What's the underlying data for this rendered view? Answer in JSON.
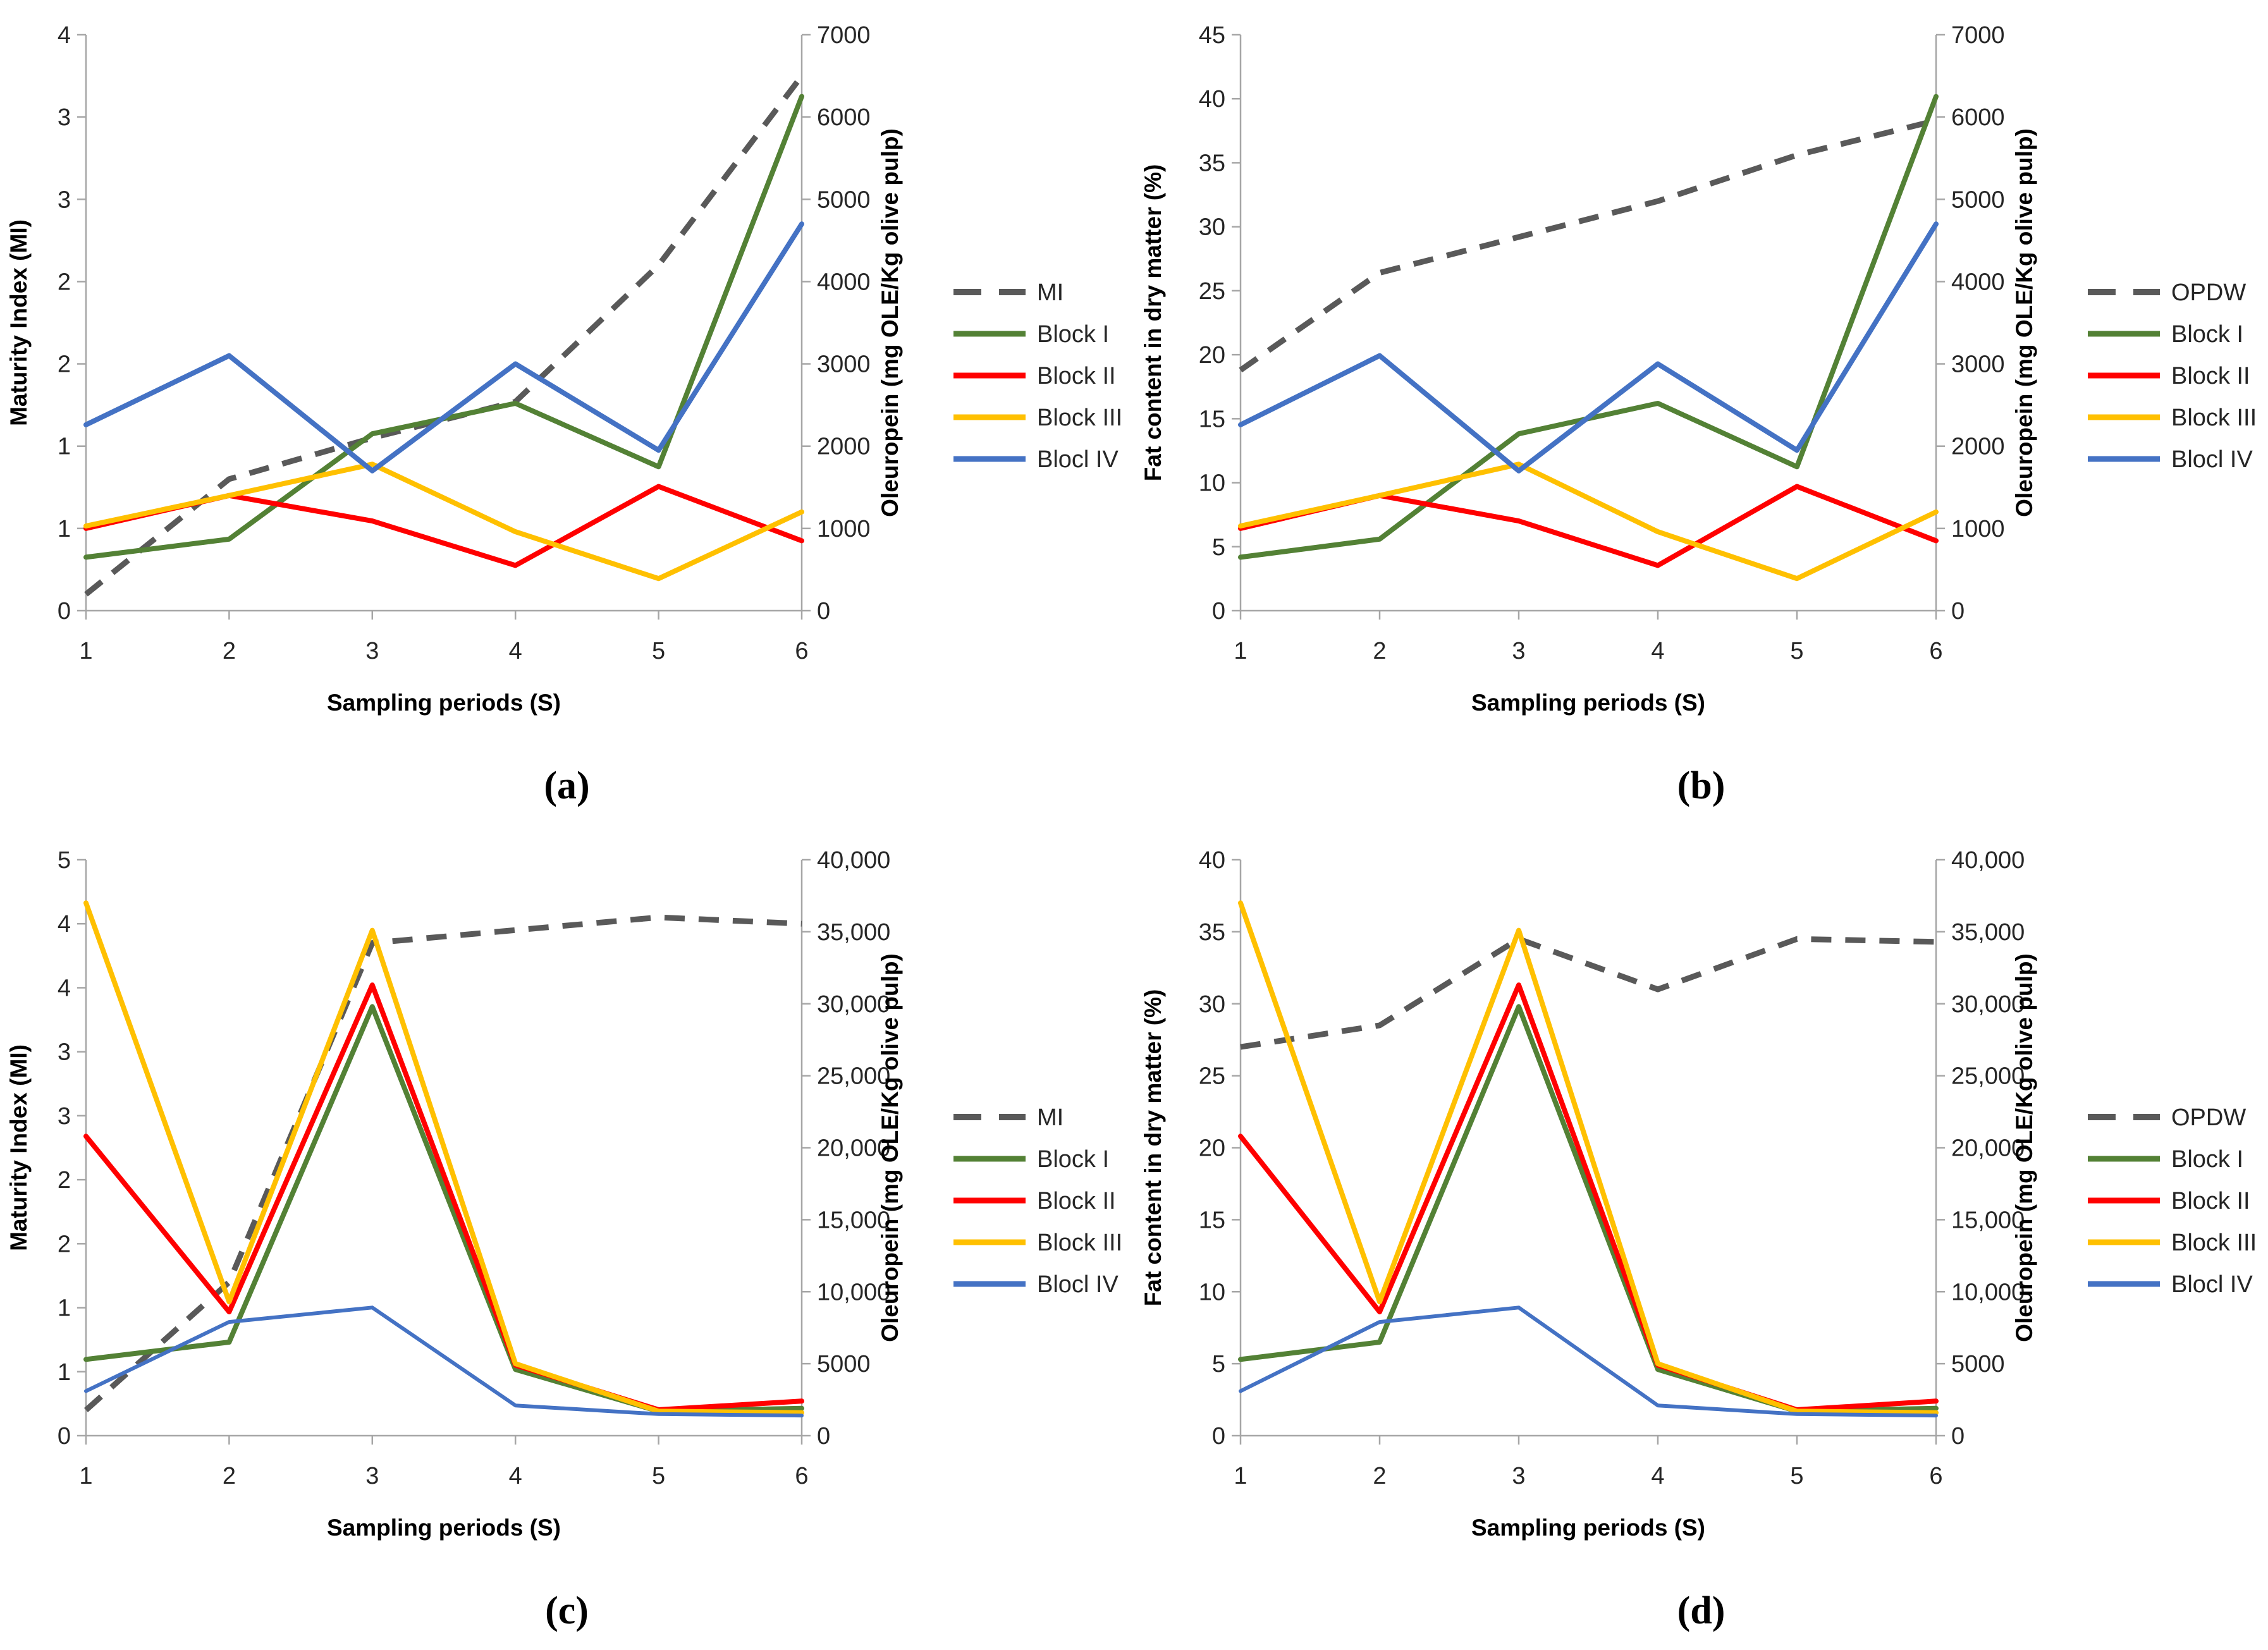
{
  "figure": {
    "background": "#ffffff",
    "axis_line_color": "#a6a6a6",
    "tick_label_color": "#262626",
    "captions": {
      "a": "(a)",
      "b": "(b)",
      "c": "(c)",
      "d": "(d)"
    }
  },
  "chart_data": [
    {
      "id": "a",
      "type": "line",
      "caption": "(a)",
      "x_axis": {
        "label": "Sampling periods (S)",
        "categories": [
          "1",
          "2",
          "3",
          "4",
          "5",
          "6"
        ]
      },
      "left_axis": {
        "label": "Maturity Index (MI)",
        "min": 0,
        "max": 3.5,
        "tick_labels": [
          "0",
          "1",
          "1",
          "2",
          "2",
          "3",
          "3",
          "4"
        ]
      },
      "right_axis": {
        "label": "Oleuropein (mg OLE/Kg olive pulp)",
        "min": 0,
        "max": 7000,
        "tick_labels": [
          "0",
          "1000",
          "2000",
          "3000",
          "4000",
          "5000",
          "6000",
          "7000"
        ]
      },
      "legend_position": "right",
      "grid": false,
      "series": [
        {
          "name": "MI",
          "axis": "left",
          "style": "dashed",
          "color": "#595959",
          "width": 9,
          "values": [
            0.1,
            0.8,
            1.05,
            1.27,
            2.1,
            3.25
          ]
        },
        {
          "name": "Block I",
          "axis": "right",
          "style": "solid",
          "color": "#538135",
          "width": 8,
          "values": [
            650,
            870,
            2150,
            2520,
            1750,
            6250
          ]
        },
        {
          "name": "Block II",
          "axis": "right",
          "style": "solid",
          "color": "#ff0000",
          "width": 8,
          "values": [
            1000,
            1400,
            1090,
            550,
            1510,
            850
          ]
        },
        {
          "name": "Block III",
          "axis": "right",
          "style": "solid",
          "color": "#ffc000",
          "width": 8,
          "values": [
            1030,
            1400,
            1780,
            960,
            390,
            1200
          ]
        },
        {
          "name": "Blocl IV",
          "axis": "right",
          "style": "solid",
          "color": "#4472c4",
          "width": 8,
          "values": [
            2260,
            3100,
            1700,
            3000,
            1950,
            4700
          ]
        }
      ]
    },
    {
      "id": "b",
      "type": "line",
      "caption": "(b)",
      "x_axis": {
        "label": "Sampling periods (S)",
        "categories": [
          "1",
          "2",
          "3",
          "4",
          "5",
          "6"
        ]
      },
      "left_axis": {
        "label": "Fat content in dry matter (%)",
        "min": 0,
        "max": 45,
        "tick_labels": [
          "0",
          "5",
          "10",
          "15",
          "20",
          "25",
          "30",
          "35",
          "40",
          "45"
        ]
      },
      "right_axis": {
        "label": "Oleuropein (mg OLE/Kg olive pulp)",
        "min": 0,
        "max": 7000,
        "tick_labels": [
          "0",
          "1000",
          "2000",
          "3000",
          "4000",
          "5000",
          "6000",
          "7000"
        ]
      },
      "legend_position": "right",
      "grid": false,
      "series": [
        {
          "name": "OPDW",
          "axis": "left",
          "style": "dashed",
          "color": "#595959",
          "width": 9,
          "values": [
            18.8,
            26.4,
            29.2,
            32.0,
            35.6,
            38.3
          ]
        },
        {
          "name": "Block I",
          "axis": "right",
          "style": "solid",
          "color": "#538135",
          "width": 8,
          "values": [
            650,
            870,
            2150,
            2520,
            1750,
            6250
          ]
        },
        {
          "name": "Block II",
          "axis": "right",
          "style": "solid",
          "color": "#ff0000",
          "width": 8,
          "values": [
            1000,
            1400,
            1090,
            550,
            1510,
            850
          ]
        },
        {
          "name": "Block III",
          "axis": "right",
          "style": "solid",
          "color": "#ffc000",
          "width": 8,
          "values": [
            1030,
            1400,
            1780,
            960,
            390,
            1200
          ]
        },
        {
          "name": "Blocl IV",
          "axis": "right",
          "style": "solid",
          "color": "#4472c4",
          "width": 8,
          "values": [
            2260,
            3100,
            1700,
            3000,
            1950,
            4700
          ]
        }
      ]
    },
    {
      "id": "c",
      "type": "line",
      "caption": "(c)",
      "x_axis": {
        "label": "Sampling periods (S)",
        "categories": [
          "1",
          "2",
          "3",
          "4",
          "5",
          "6"
        ]
      },
      "left_axis": {
        "label": "Maturity Index (MI)",
        "min": 0,
        "max": 4.5,
        "tick_labels": [
          "0",
          "1",
          "1",
          "2",
          "2",
          "3",
          "3",
          "4",
          "4",
          "5"
        ]
      },
      "right_axis": {
        "label": "Oleuropein (mg OLE/Kg olive pulp)",
        "min": 0,
        "max": 40000,
        "tick_labels": [
          "0",
          "5000",
          "10,000",
          "15,000",
          "20,000",
          "25,000",
          "30,000",
          "35,000",
          "40,000"
        ]
      },
      "legend_position": "right",
      "grid": false,
      "series": [
        {
          "name": "MI",
          "axis": "left",
          "style": "dashed",
          "color": "#595959",
          "width": 9,
          "values": [
            0.2,
            1.2,
            3.85,
            3.95,
            4.05,
            4.0
          ]
        },
        {
          "name": "Block I",
          "axis": "right",
          "style": "solid",
          "color": "#538135",
          "width": 8,
          "values": [
            5300,
            6500,
            29800,
            4600,
            1700,
            1900
          ]
        },
        {
          "name": "Block II",
          "axis": "right",
          "style": "solid",
          "color": "#ff0000",
          "width": 8,
          "values": [
            20800,
            8600,
            31300,
            4900,
            1800,
            2400
          ]
        },
        {
          "name": "Block III",
          "axis": "right",
          "style": "solid",
          "color": "#ffc000",
          "width": 8,
          "values": [
            37000,
            9300,
            35100,
            5000,
            1700,
            1600
          ]
        },
        {
          "name": "Blocl IV",
          "axis": "right",
          "style": "solid",
          "color": "#4472c4",
          "width": 6,
          "values": [
            3100,
            7900,
            8900,
            2100,
            1500,
            1400
          ]
        }
      ]
    },
    {
      "id": "d",
      "type": "line",
      "caption": "(d)",
      "x_axis": {
        "label": "Sampling periods (S)",
        "categories": [
          "1",
          "2",
          "3",
          "4",
          "5",
          "6"
        ]
      },
      "left_axis": {
        "label": "Fat content in dry matter (%)",
        "min": 0,
        "max": 40,
        "tick_labels": [
          "0",
          "5",
          "10",
          "15",
          "20",
          "25",
          "30",
          "35",
          "40"
        ]
      },
      "right_axis": {
        "label": "Oleuropein (mg OLE/Kg olive pulp)",
        "min": 0,
        "max": 40000,
        "tick_labels": [
          "0",
          "5000",
          "10,000",
          "15,000",
          "20,000",
          "25,000",
          "30,000",
          "35,000",
          "40,000"
        ]
      },
      "legend_position": "right",
      "grid": false,
      "series": [
        {
          "name": "OPDW",
          "axis": "left",
          "style": "dashed",
          "color": "#595959",
          "width": 9,
          "values": [
            27.0,
            28.5,
            34.5,
            31.0,
            34.5,
            34.3
          ]
        },
        {
          "name": "Block I",
          "axis": "right",
          "style": "solid",
          "color": "#538135",
          "width": 8,
          "values": [
            5300,
            6500,
            29800,
            4600,
            1700,
            1900
          ]
        },
        {
          "name": "Block II",
          "axis": "right",
          "style": "solid",
          "color": "#ff0000",
          "width": 8,
          "values": [
            20800,
            8600,
            31300,
            4900,
            1800,
            2400
          ]
        },
        {
          "name": "Block III",
          "axis": "right",
          "style": "solid",
          "color": "#ffc000",
          "width": 8,
          "values": [
            37000,
            9300,
            35100,
            5000,
            1700,
            1600
          ]
        },
        {
          "name": "Blocl IV",
          "axis": "right",
          "style": "solid",
          "color": "#4472c4",
          "width": 6,
          "values": [
            3100,
            7900,
            8900,
            2100,
            1500,
            1400
          ]
        }
      ]
    }
  ]
}
